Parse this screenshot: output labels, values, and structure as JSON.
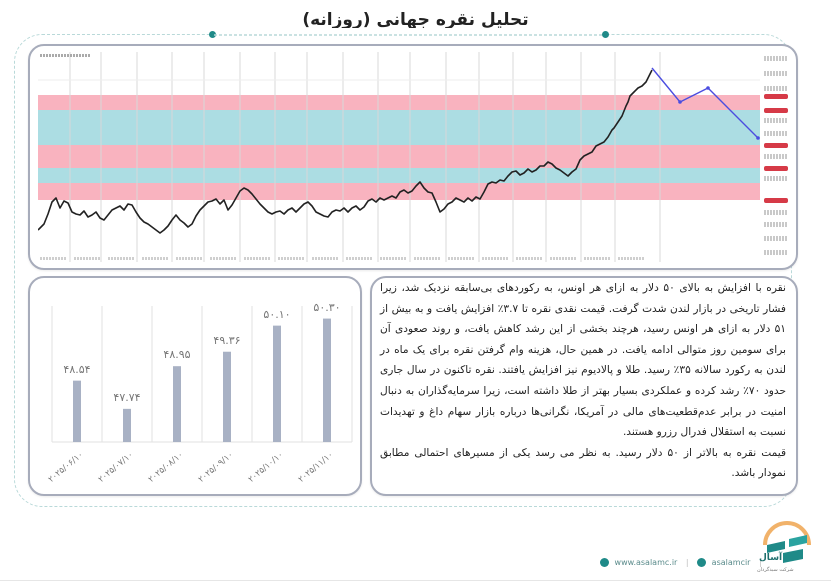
{
  "header": {
    "title": "تحلیل نقره جهانی (روزانه)"
  },
  "price_chart": {
    "description": "Daily silver price chart with horizontal support/resistance zones and a projected path",
    "band_colors": {
      "pink": "#f9b3bf",
      "blue": "#acdde3"
    },
    "line_color": "#222222",
    "projection_color": "#4b4de0",
    "projection_path": [
      "peak",
      "drop to zone top",
      "rebound",
      "decline into lower blue zone"
    ]
  },
  "chart_data": {
    "type": "bar",
    "title": "",
    "categories": [
      "۲۰۲۵/۰۶/۱۰",
      "۲۰۲۵/۰۷/۱۰",
      "۲۰۲۵/۰۸/۱۰",
      "۲۰۲۵/۰۹/۱۰",
      "۲۰۲۵/۱۰/۱۰",
      "۲۰۲۵/۱۱/۱۰"
    ],
    "values": [
      48.54,
      47.74,
      48.95,
      49.36,
      50.1,
      50.3
    ],
    "value_labels": [
      "۴۸.۵۴",
      "۴۷.۷۴",
      "۴۸.۹۵",
      "۴۹.۳۶",
      "۵۰.۱۰",
      "۵۰.۳۰"
    ],
    "xlabel": "",
    "ylabel": "",
    "ylim": [
      46.8,
      50.6
    ],
    "bar_color": "#a8b1c4",
    "grid": "vertical separators"
  },
  "article": {
    "paragraph1": "نقره با افزایش به بالای ۵۰ دلار به ازای هر اونس، به رکوردهای بی‌سابقه نزدیک شد، زیرا فشار تاریخی در بازار لندن شدت گرفت. قیمت نقدی نقره تا ۳.۷٪ افزایش یافت و به بیش از ۵۱ دلار به ازای هر اونس رسید، هرچند بخشی از این رشد کاهش یافت، و روند صعودی آن برای سومین روز متوالی ادامه یافت. در همین حال، هزینه وام گرفتن نقره برای یک ماه در لندن به رکورد سالانه ۳۵٪ رسید. طلا و پالادیوم نیز افزایش یافتند. نقره تاکنون در سال جاری حدود ۷۰٪ رشد کرده و عملکردی بسیار بهتر از طلا داشته است، زیرا سرمایه‌گذاران به دنبال امنیت در برابر عدم‌قطعیت‌های مالی در آمریکا، نگرانی‌ها درباره بازار سهام داغ و تهدیدات نسبت به استقلال فدرال رزرو هستند.",
    "paragraph2": "قیمت نقره به بالاتر از ۵۰ دلار رسید. به نظر می رسد یکی از مسیرهای احتمالی مطابق نمودار باشد."
  },
  "footer": {
    "website": "www.asalamc.ir",
    "social": "asalamcir",
    "logo_name": "آسال",
    "logo_subtitle": "شرکت سبدگردان"
  }
}
